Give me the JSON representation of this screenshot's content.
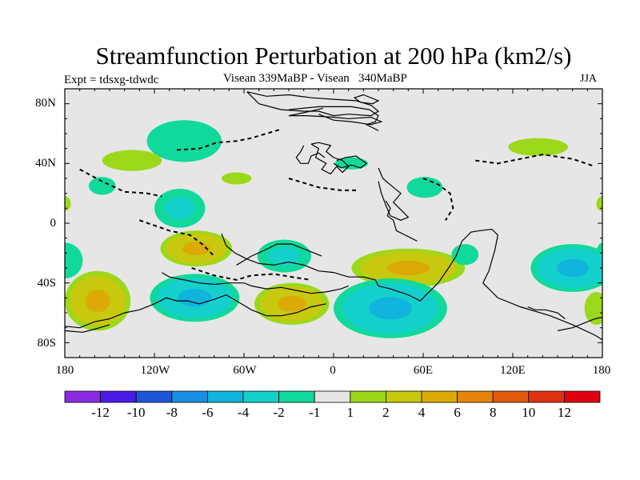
{
  "title": "Streamfunction Perturbation at 200 hPa (km2/s)",
  "left_subtitle": "Expt = tdsxg-tdwdc",
  "center_subtitle": "Visean 339MaBP - Visean   340MaBP",
  "right_subtitle": "JJA",
  "lat_labels": [
    "80N",
    "40N",
    "0",
    "40S",
    "80S"
  ],
  "lon_labels": [
    "180",
    "120W",
    "60W",
    "0",
    "60E",
    "120E",
    "180"
  ],
  "colorbar": {
    "colors": [
      "#8a2be2",
      "#4b1be8",
      "#1e56d6",
      "#1a8ee0",
      "#10b4dd",
      "#14d0cc",
      "#10d99b",
      "#e6e6e6",
      "#9cd81a",
      "#c8c80e",
      "#dcaa06",
      "#e4850a",
      "#e25a0c",
      "#de3212",
      "#e00010"
    ],
    "labels": [
      "-12",
      "-10",
      "-8",
      "-6",
      "-4",
      "-2",
      "-1",
      "1",
      "2",
      "4",
      "6",
      "8",
      "10",
      "12"
    ]
  },
  "chart_data": {
    "type": "contour_map",
    "title": "Streamfunction Perturbation at 200 hPa (km2/s)",
    "variable": "200 hPa streamfunction perturbation",
    "units": "km2/s",
    "season": "JJA",
    "experiment": "tdsxg-tdwdc",
    "comparison": "Visean 339MaBP - Visean 340MaBP",
    "projection": "cylindrical equidistant",
    "lon_range": [
      -180,
      180
    ],
    "lat_range": [
      -90,
      90
    ],
    "contour_levels": [
      -12,
      -10,
      -8,
      -6,
      -4,
      -2,
      -1,
      1,
      2,
      4,
      6,
      8,
      10,
      12
    ],
    "features": [
      {
        "sign": "negative",
        "lon": -100,
        "lat": 55,
        "lon_half": 25,
        "lat_half": 14,
        "max_abs": 1.5
      },
      {
        "sign": "positive",
        "lon": -135,
        "lat": 42,
        "lon_half": 20,
        "lat_half": 7,
        "max_abs": 1.5
      },
      {
        "sign": "negative",
        "lon": -155,
        "lat": 25,
        "lon_half": 9,
        "lat_half": 6,
        "max_abs": 1.5
      },
      {
        "sign": "positive",
        "lon": -65,
        "lat": 30,
        "lon_half": 10,
        "lat_half": 4,
        "max_abs": 1.5
      },
      {
        "sign": "negative",
        "lon": -103,
        "lat": 10,
        "lon_half": 17,
        "lat_half": 13,
        "max_abs": 2.5
      },
      {
        "sign": "negative",
        "lon": -180,
        "lat": -25,
        "lon_half": 12,
        "lat_half": 12,
        "max_abs": 1.5
      },
      {
        "sign": "negative",
        "lon": 180,
        "lat": -25,
        "lon_half": 5,
        "lat_half": 12,
        "max_abs": 1.5
      },
      {
        "sign": "positive",
        "lon": -180,
        "lat": 13,
        "lon_half": 4,
        "lat_half": 5,
        "max_abs": 1.5
      },
      {
        "sign": "positive",
        "lon": 180,
        "lat": 13,
        "lon_half": 4,
        "lat_half": 5,
        "max_abs": 1.5
      },
      {
        "sign": "positive",
        "lon": -158,
        "lat": -52,
        "lon_half": 22,
        "lat_half": 20,
        "max_abs": 4.5
      },
      {
        "sign": "positive",
        "lon": -92,
        "lat": -17,
        "lon_half": 24,
        "lat_half": 12,
        "max_abs": 4.5
      },
      {
        "sign": "negative",
        "lon": -93,
        "lat": -50,
        "lon_half": 30,
        "lat_half": 16,
        "max_abs": 4.5
      },
      {
        "sign": "negative",
        "lon": -33,
        "lat": -22,
        "lon_half": 18,
        "lat_half": 11,
        "max_abs": 2.5
      },
      {
        "sign": "positive",
        "lon": -28,
        "lat": -54,
        "lon_half": 25,
        "lat_half": 14,
        "max_abs": 4.5
      },
      {
        "sign": "negative",
        "lon": 12,
        "lat": 40,
        "lon_half": 11,
        "lat_half": 4,
        "max_abs": 1.5
      },
      {
        "sign": "negative",
        "lon": 61,
        "lat": 24,
        "lon_half": 12,
        "lat_half": 7,
        "max_abs": 1.5
      },
      {
        "sign": "positive",
        "lon": 50,
        "lat": -30,
        "lon_half": 38,
        "lat_half": 13,
        "max_abs": 4.5
      },
      {
        "sign": "negative",
        "lon": 38,
        "lat": -57,
        "lon_half": 38,
        "lat_half": 20,
        "max_abs": 4.5
      },
      {
        "sign": "negative",
        "lon": 88,
        "lat": -21,
        "lon_half": 9,
        "lat_half": 7,
        "max_abs": 1.5
      },
      {
        "sign": "positive",
        "lon": 137,
        "lat": 51,
        "lon_half": 20,
        "lat_half": 6,
        "max_abs": 1.5
      },
      {
        "sign": "negative",
        "lon": 160,
        "lat": -30,
        "lon_half": 28,
        "lat_half": 16,
        "max_abs": 4.5
      },
      {
        "sign": "positive",
        "lon": 176,
        "lat": -57,
        "lon_half": 8,
        "lat_half": 11,
        "max_abs": 1.5
      }
    ]
  }
}
